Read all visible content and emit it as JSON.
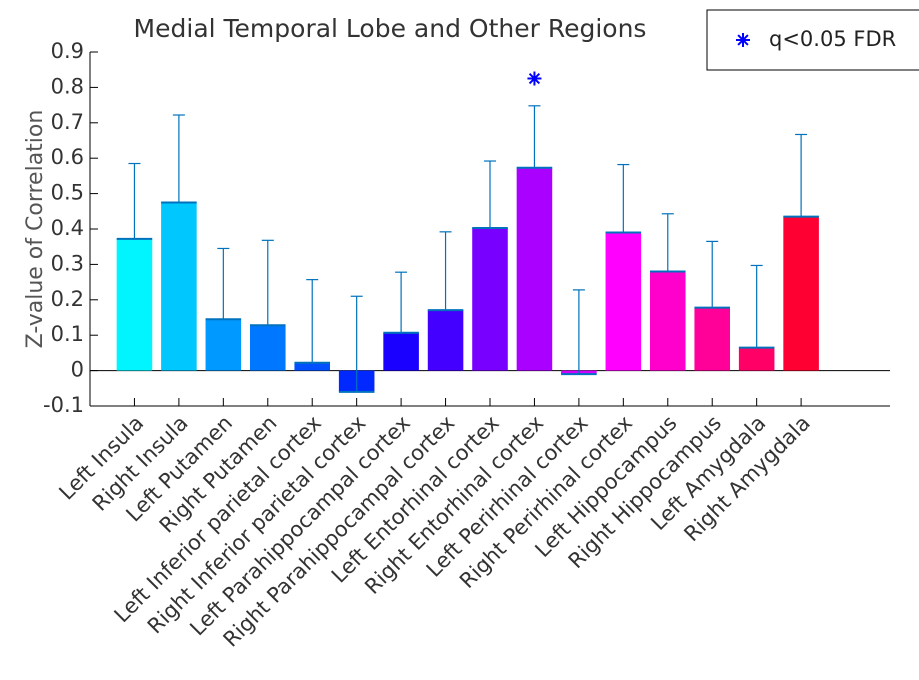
{
  "chart_data": {
    "type": "bar",
    "title": "Medial Temporal Lobe and Other Regions",
    "y_label": "Z-value of Correlation",
    "categories": [
      "Left Insula",
      "Right Insula",
      "Left Putamen",
      "Right Putamen",
      "Left Inferior parietal cortex",
      "Right Inferior parietal cortex",
      "Left Parahippocampal cortex",
      "Right Parahippocampal cortex",
      "Left Entorhinal cortex",
      "Right Entorhinal cortex",
      "Left Perirhinal cortex",
      "Right Perirhinal cortex",
      "Left Hippocampus",
      "Right Hippocampus",
      "Left Amygdala",
      "Right Amygdala"
    ],
    "series": [
      {
        "values": [
          0.372,
          0.475,
          0.145,
          0.128,
          0.022,
          -0.06,
          0.107,
          0.171,
          0.403,
          0.573,
          -0.01,
          0.39,
          0.28,
          0.178,
          0.065,
          0.435
        ],
        "errors": [
          0.213,
          0.247,
          0.2,
          0.24,
          0.235,
          0.27,
          0.171,
          0.221,
          0.189,
          0.175,
          0.238,
          0.192,
          0.163,
          0.187,
          0.232,
          0.232
        ],
        "colors": [
          "#00f5ff",
          "#00c8ff",
          "#0099ff",
          "#0077ff",
          "#0050ff",
          "#0028ff",
          "#1a00ff",
          "#4400ff",
          "#7700ff",
          "#aa00ff",
          "#d400ff",
          "#ff00ff",
          "#ff00cc",
          "#ff0099",
          "#ff0066",
          "#ff0033"
        ],
        "error_color": "#0072bd"
      },
      {
        "name": "q<0.05 FDR",
        "type": "marker",
        "color": "#0000ff",
        "values": [
          null,
          null,
          null,
          null,
          null,
          null,
          null,
          null,
          null,
          0.825,
          null,
          null,
          null,
          null,
          null,
          null
        ]
      }
    ],
    "ylim": [
      -0.1,
      0.9
    ],
    "yticks": [
      -0.1,
      0,
      0.1,
      0.2,
      0.3,
      0.4,
      0.5,
      0.6,
      0.7,
      0.8,
      0.9
    ],
    "legend": "top-right"
  }
}
